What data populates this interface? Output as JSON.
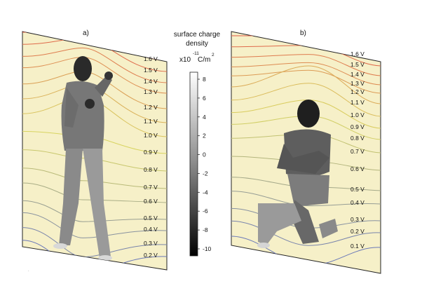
{
  "figure": {
    "panels": [
      {
        "label": "a)",
        "pose": "standing",
        "contour_labels": [
          "1.6 V",
          "1.5 V",
          "1.4 V",
          "1.3 V",
          "1.2 V",
          "1.1 V",
          "1.0 V",
          "0.9 V",
          "0.8 V",
          "0.7 V",
          "0.6 V",
          "0.5 V",
          "0.4 V",
          "0.3 V",
          "0.2 V"
        ]
      },
      {
        "label": "b)",
        "pose": "kneeling",
        "contour_labels": [
          "1.6 V",
          "1.5 V",
          "1.4 V",
          "1.3 V",
          "1.2 V",
          "1.1 V",
          "1.0 V",
          "0.9 V",
          "0.8 V",
          "0.7 V",
          "0.6 V",
          "0.5 V",
          "0.4 V",
          "0.3 V",
          "0.2 V",
          "0.1 V"
        ]
      }
    ],
    "colorbar": {
      "title_line1": "surface charge",
      "title_line2": "density",
      "unit_prefix": "x10",
      "unit_exp": "-11",
      "unit_main": "C/m",
      "unit_sup": "2",
      "ticks": [
        "8",
        "6",
        "4",
        "2",
        "0",
        "-2",
        "-4",
        "-6",
        "-8",
        "-10"
      ],
      "range": [
        -10,
        8
      ]
    },
    "colors": {
      "background": "#f6f0c8",
      "contour_high": "#e05a48",
      "contour_mid": "#d8d460",
      "contour_low": "#6a78b8",
      "body_light": "#cfcfcf",
      "body_dark": "#1a1a1a"
    }
  }
}
